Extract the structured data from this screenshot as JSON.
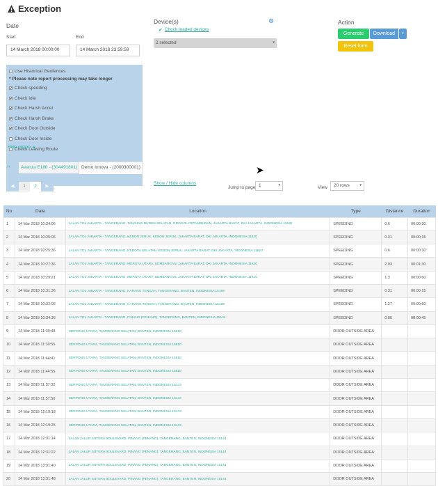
{
  "header": {
    "title": "Exception",
    "icon": "warning-icon"
  },
  "date": {
    "label": "Date",
    "start_label": "Start",
    "end_label": "End",
    "start_value": "14 March 2018 00:00:00",
    "end_value": "14 March 2018 23:59:59"
  },
  "options": {
    "historical": "Use Historical Geofences",
    "note": "* Please note report processing may take longer",
    "items": [
      {
        "label": "Check speeding",
        "checked": true
      },
      {
        "label": "Check Idle",
        "checked": true
      },
      {
        "label": "Check Harsh Accel",
        "checked": true
      },
      {
        "label": "Check Harsh Brake",
        "checked": true
      },
      {
        "label": "Check Door Outside",
        "checked": true
      },
      {
        "label": "Check Door Inside",
        "checked": false
      },
      {
        "label": "Check Leaving Route",
        "checked": false
      }
    ],
    "hide": "Hide option ▲"
  },
  "devices": {
    "label": "Device(s)",
    "check_loaded": "Check loaded devices",
    "selected": "2 selected"
  },
  "action": {
    "label": "Action",
    "generate": "Generate",
    "download": "Download",
    "reset": "Reset form",
    "colors": {
      "generate": "#2ecc71",
      "download": "#5b9bd5",
      "reset": "#f1c40f"
    }
  },
  "device_tabs": [
    "Avanza E180 - (304491801)",
    "Demo Innova - (2000300001)"
  ],
  "pager": {
    "pages": [
      "1",
      "2"
    ],
    "current": "2"
  },
  "show_hide": "Show / Hide columns",
  "jump": {
    "label": "Jump to page",
    "value": "1"
  },
  "view": {
    "label": "View",
    "value": "20 rows"
  },
  "table": {
    "headers": [
      "No",
      "Date",
      "Location",
      "Type",
      "Distance",
      "Duration"
    ],
    "rows": [
      [
        "1",
        "14 Mar 2018 10:24:06",
        "JALAN TOL JAKARTA - TANGERANG, TANJUNG DUREN SELATAN, GROGOL PETAMBURAN, JAKARTA BARAT, DKI JAKARTA, INDONESIA 11530",
        "SPEEDING",
        "0.6",
        "00:00:30"
      ],
      [
        "2",
        "14 Mar 2018 10:25:06",
        "JALAN TOL JAKARTA - TANGERANG, KEBON JERUK, KEBON JERUK, JAKARTA BARAT, DKI JAKARTA, INDONESIA 11530",
        "SPEEDING",
        "0.31",
        "00:00:15"
      ],
      [
        "3",
        "14 Mar 2018 10:25:36",
        "JALAN TOL JAKARTA - TANGERANG, KEDOYA SELATAN, KEBON JERUK, JAKARTA BARAT, DKI JAKARTA, INDONESIA 11520",
        "SPEEDING",
        "0.6",
        "00:00:30"
      ],
      [
        "4",
        "14 Mar 2018 10:27:36",
        "JALAN TOL JAKARTA - TANGERANG, MERUYA UTARA, KEMBANGAN, JAKARTA BARAT, DKI JAKARTA, INDONESIA 11620",
        "SPEEDING",
        "2.03",
        "00:01:30"
      ],
      [
        "5",
        "14 Mar 2018 10:29:21",
        "JALAN TOL JAKARTA - TANGERANG, MERUYA UTARA, KEMBANGAN, JAKARTA BARAT, DKI JAKARTA, INDONESIA 11610",
        "SPEEDING",
        "1.3",
        "00:00:60"
      ],
      [
        "6",
        "14 Mar 2018 10:31:36",
        "JALAN TOL JAKARTA - TANGERANG, KARANG TENGAH, TANGERANG, BANTEN, INDONESIA 15159",
        "SPEEDING",
        "0.31",
        "00:00:15"
      ],
      [
        "7",
        "14 Mar 2018 10:32:06",
        "JALAN TOL JAKARTA - TANGERANG, KARANG TENGAH, TANGERANG, BANTEN, INDONESIA 15159",
        "SPEEDING",
        "1.27",
        "00:00:60"
      ],
      [
        "8",
        "14 Mar 2018 10:34:36",
        "JALAN TOL JAKARTA - TANGERANG, PINANG (PENANG), TANGERANG, BANTEN, INDONESIA 15144",
        "SPEEDING",
        "0.86",
        "00:00:45"
      ],
      [
        "9",
        "14 Mar 2018 11:30:48",
        "SERPONG UTARA, TANGERANG SELATAN, BANTEN, INDONESIA 15810",
        "DOOR OUTSIDE AREA",
        "",
        ""
      ],
      [
        "10",
        "14 Mar 2018 11:30:55",
        "SERPONG UTARA, TANGERANG SELATAN, BANTEN, INDONESIA 15810",
        "DOOR OUTSIDE AREA",
        "",
        ""
      ],
      [
        "11",
        "14 Mar 2018 11:44:41",
        "SERPONG UTARA, TANGERANG SELATAN, BANTEN, INDONESIA 15810",
        "DOOR OUTSIDE AREA",
        "",
        ""
      ],
      [
        "12",
        "14 Mar 2018 11:44:55",
        "SERPONG UTARA, TANGERANG SELATAN, BANTEN, INDONESIA 15810",
        "DOOR OUTSIDE AREA",
        "",
        ""
      ],
      [
        "13",
        "14 Mar 2018 11:57:32",
        "SERPONG UTARA, TANGERANG SELATAN, BANTEN, INDONESIA 15143",
        "DOOR OUTSIDE AREA",
        "",
        ""
      ],
      [
        "14",
        "14 Mar 2018 11:57:50",
        "SERPONG UTARA, TANGERANG SELATAN, BANTEN, INDONESIA 15143",
        "DOOR OUTSIDE AREA",
        "",
        ""
      ],
      [
        "15",
        "14 Mar 2018 12:19:18",
        "SERPONG UTARA, TANGERANG SELATAN, BANTEN, INDONESIA 15143",
        "DOOR OUTSIDE AREA",
        "",
        ""
      ],
      [
        "16",
        "14 Mar 2018 12:19:25",
        "SERPONG UTARA, TANGERANG SELATAN, BANTEN, INDONESIA 15143",
        "DOOR OUTSIDE AREA",
        "",
        ""
      ],
      [
        "17",
        "14 Mar 2018 12:31:14",
        "JALAN JALUR SUTERA BOULEVARD, PINANG (PENANG), TANGERANG, BANTEN, INDONESIA 15144",
        "DOOR OUTSIDE AREA",
        "",
        ""
      ],
      [
        "18",
        "14 Mar 2018 12:31:22",
        "JALAN JALUR SUTERA BOULEVARD, PINANG (PENANG), TANGERANG, BANTEN, INDONESIA 15144",
        "DOOR OUTSIDE AREA",
        "",
        ""
      ],
      [
        "19",
        "14 Mar 2018 13:31:40",
        "JALAN JALUR SUTERA BOULEVARD, PINANG (PENANG), TANGERANG, BANTEN, INDONESIA 15144",
        "DOOR OUTSIDE AREA",
        "",
        ""
      ],
      [
        "20",
        "14 Mar 2018 13:31:48",
        "JALAN JALUR SUTERA BOULEVARD, PINANG (PENANG), TANGERANG, BANTEN, INDONESIA 15144",
        "DOOR OUTSIDE AREA",
        "",
        ""
      ]
    ]
  }
}
